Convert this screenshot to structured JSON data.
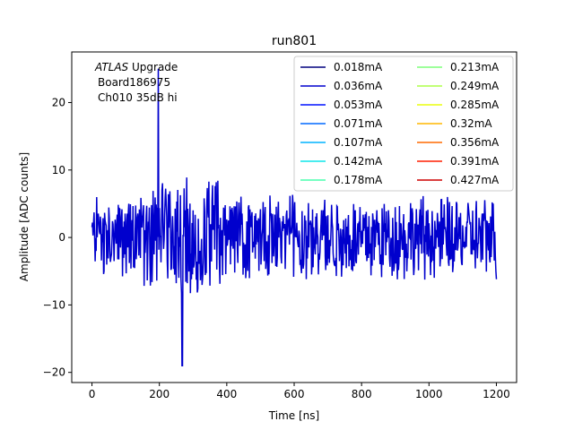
{
  "chart_data": {
    "type": "line",
    "title": "run801",
    "xlabel": "Time [ns]",
    "ylabel": "Amplitude [ADC counts]",
    "xlim": [
      -60,
      1260
    ],
    "ylim": [
      -21.5,
      27.5
    ],
    "xticks": [
      0,
      200,
      400,
      600,
      800,
      1000,
      1200
    ],
    "yticks": [
      -20,
      -10,
      0,
      10,
      20
    ],
    "grid": false,
    "legend_position": "top-right",
    "legend_columns": 2,
    "annotation": {
      "line1_italic": "ATLAS",
      "line1_rest": " Upgrade",
      "line2": "Board186975",
      "line3": "Ch010 35dB hi"
    },
    "series": [
      {
        "name": "0.018mA",
        "color": "#00007f"
      },
      {
        "name": "0.036mA",
        "color": "#0000ce"
      },
      {
        "name": "0.053mA",
        "color": "#0012ff"
      },
      {
        "name": "0.071mA",
        "color": "#0068ff"
      },
      {
        "name": "0.107mA",
        "color": "#00b4ff"
      },
      {
        "name": "0.142mA",
        "color": "#0de5ea"
      },
      {
        "name": "0.178mA",
        "color": "#49ffad"
      },
      {
        "name": "0.213mA",
        "color": "#7dff7a"
      },
      {
        "name": "0.249mA",
        "color": "#adff49"
      },
      {
        "name": "0.285mA",
        "color": "#eafe0d"
      },
      {
        "name": "0.32mA",
        "color": "#ffb700"
      },
      {
        "name": "0.356mA",
        "color": "#ff6a00"
      },
      {
        "name": "0.391mA",
        "color": "#ff1e00"
      },
      {
        "name": "0.427mA",
        "color": "#cd0000"
      }
    ],
    "waveform": {
      "color": "#0000cd",
      "time_start": 0,
      "time_end": 1200,
      "sample_step": 1.5625,
      "typical_range": [
        -7,
        10
      ],
      "peak_max": {
        "x": 197,
        "y": 25
      },
      "peak_min": {
        "x": 268,
        "y": -19
      }
    }
  }
}
